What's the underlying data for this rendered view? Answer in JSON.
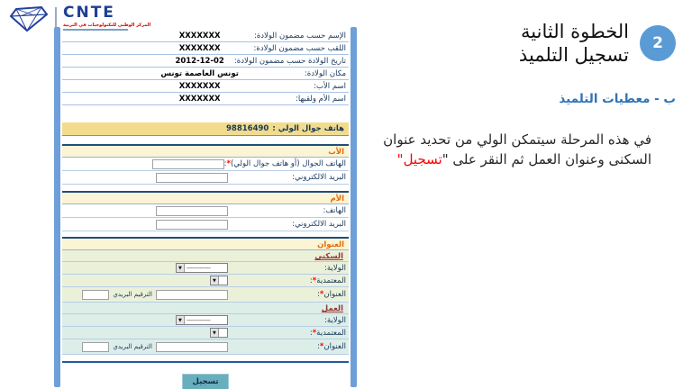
{
  "logo": {
    "brand": "CNTE",
    "subtitle_ar": "المركز الوطني للتكنولوجيات في التربية"
  },
  "form": {
    "info_rows": [
      {
        "label": "الإسم حسب مضمون الولادة:",
        "value": "XXXXXXX"
      },
      {
        "label": "اللقب حسب مضمون الولادة:",
        "value": "XXXXXXX"
      },
      {
        "label": "تاريخ الولادة حسب مضمون الولادة:",
        "value": "2012-12-02"
      },
      {
        "label": "مكان الولادة:",
        "value": "تونس العاصمة تونس"
      },
      {
        "label": "اسم الأب:",
        "value": "XXXXXXX"
      },
      {
        "label": "اسم الأم ولقبها:",
        "value": "XXXXXXX"
      }
    ],
    "phone_banner": {
      "label": "هاتف جوال الولي :",
      "number": "98816490"
    },
    "sections": [
      {
        "id": "father",
        "title": "الأب",
        "rows": [
          {
            "label": "الهاتف الجوال (أو هاتف جوال الولي)",
            "required": true,
            "control": "input",
            "field": "phone"
          },
          {
            "label": "البريد الالكتروني",
            "required": false,
            "control": "input",
            "field": "email"
          }
        ]
      },
      {
        "id": "mother",
        "title": "الأم",
        "rows": [
          {
            "label": "الهاتف",
            "required": false,
            "control": "input",
            "field": "phone"
          },
          {
            "label": "البريد الالكتروني",
            "required": false,
            "control": "input",
            "field": "email"
          }
        ]
      }
    ],
    "address": {
      "title": "العنوان",
      "postal_label": "الترقيم البريدي",
      "select_placeholder": "-------------",
      "subsections": [
        {
          "id": "residence",
          "title": "السكنى",
          "theme": "green",
          "rows": [
            {
              "label": "الولاية",
              "required": false,
              "control": "select-wide",
              "field": "state"
            },
            {
              "label": "المعتمدية",
              "required": true,
              "control": "select-narrow",
              "field": "delegation"
            },
            {
              "label": "العنوان",
              "required": true,
              "control": "address",
              "field": "address"
            }
          ]
        },
        {
          "id": "work",
          "title": "العمل",
          "theme": "teal",
          "rows": [
            {
              "label": "الولاية",
              "required": false,
              "control": "select-wide",
              "field": "state"
            },
            {
              "label": "المعتمدية",
              "required": true,
              "control": "select-narrow",
              "field": "delegation"
            },
            {
              "label": "العنوان",
              "required": true,
              "control": "address",
              "field": "address"
            }
          ]
        }
      ]
    },
    "submit_label": "تسجيل"
  },
  "panel": {
    "step_number": "2",
    "title_line1": "الخطوة الثانية",
    "title_line2": "تسجيل التلميذ",
    "subtitle": "ب - معطيات التلميذ",
    "desc_before": "في هذه المرحلة سيتمكن الولي من تحديد عنوان السكنى وعنوان العمل ثم النقر على \"",
    "desc_highlight": "تسجيل",
    "desc_after": "\""
  },
  "colors": {
    "accent_blue": "#5b9bd5",
    "bar_blue": "#6f9fd8",
    "banner_yellow": "#f2dc8c",
    "section_header_orange": "#e36c0a",
    "residence_green": "#ebf1d9",
    "work_teal": "#ddeee9",
    "highlight_red": "#ff0000",
    "button_teal": "#68aebd"
  }
}
